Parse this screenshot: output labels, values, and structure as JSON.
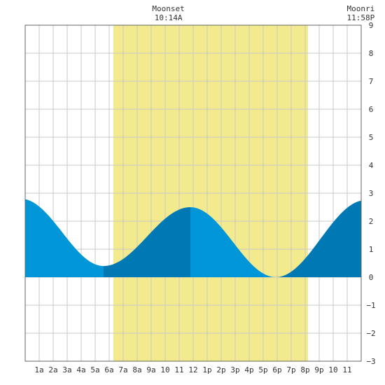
{
  "chart_data": {
    "type": "area",
    "title": "",
    "xlabel": "",
    "ylabel": "",
    "x_unit": "hour of day",
    "xlim": [
      0,
      24
    ],
    "ylim": [
      -3,
      9
    ],
    "grid": true,
    "y_ticks": [
      -3,
      -2,
      -1,
      0,
      1,
      2,
      3,
      4,
      5,
      6,
      7,
      8,
      9
    ],
    "y_tick_labels": [
      "−3",
      "−2",
      "−1",
      "0",
      "1",
      "2",
      "3",
      "4",
      "5",
      "6",
      "7",
      "8",
      "9"
    ],
    "x_ticks": [
      1,
      2,
      3,
      4,
      5,
      6,
      7,
      8,
      9,
      10,
      11,
      12,
      13,
      14,
      15,
      16,
      17,
      18,
      19,
      20,
      21,
      22,
      23
    ],
    "x_tick_labels": [
      "1a",
      "2a",
      "3a",
      "4a",
      "5a",
      "6a",
      "7a",
      "8a",
      "9a",
      "10",
      "11",
      "12",
      "1p",
      "2p",
      "3p",
      "4p",
      "5p",
      "6p",
      "7p",
      "8p",
      "9p",
      "10",
      "11"
    ],
    "daylight": [
      6.3,
      20.2
    ],
    "annotations": [
      {
        "line1": "Moonset",
        "line2": "10:14A",
        "x": 10.23
      },
      {
        "line1": "Moonri",
        "line2": "11:58P",
        "x": 23.97
      }
    ],
    "tide_extremes": [
      {
        "time": -0.3,
        "height": 2.8
      },
      {
        "time": 5.6,
        "height": 0.4
      },
      {
        "time": 11.8,
        "height": 2.5
      },
      {
        "time": 17.9,
        "height": 0.0
      },
      {
        "time": 24.3,
        "height": 2.75
      }
    ],
    "colors": {
      "daylight": "#f2ea8c",
      "tide_light": "#0096d8",
      "tide_dark": "#0078b4",
      "grid": "#c8c8c8",
      "frame": "#666666"
    }
  }
}
